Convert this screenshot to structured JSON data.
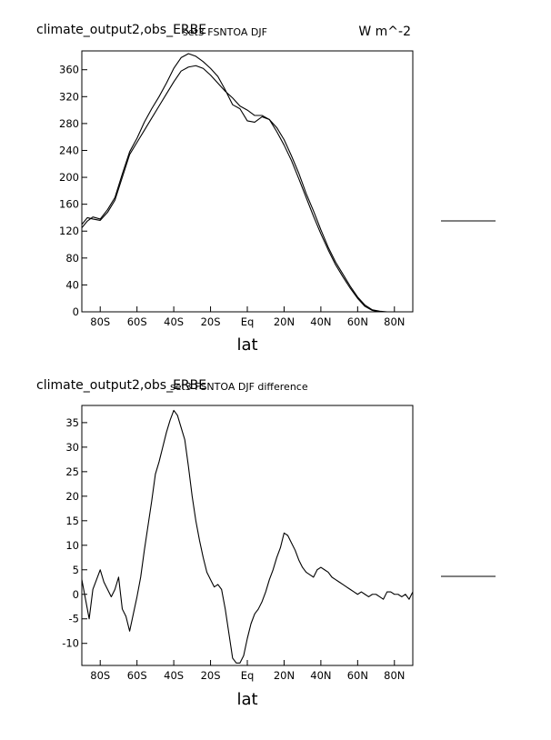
{
  "chart_data": [
    {
      "type": "line",
      "title": "climate_output2,obs_ERBE",
      "subtitle": "set3 FSNTOA DJF",
      "units": "W m^-2",
      "xlabel": "lat",
      "ylabel": "",
      "xlim": [
        -90,
        90
      ],
      "ylim": [
        0,
        388
      ],
      "xticks": [
        -80,
        -60,
        -40,
        -20,
        0,
        20,
        40,
        60,
        80
      ],
      "xtick_labels": [
        "80S",
        "60S",
        "40S",
        "20S",
        "Eq",
        "20N",
        "40N",
        "60N",
        "80N"
      ],
      "yticks": [
        0,
        40,
        80,
        120,
        160,
        200,
        240,
        280,
        320,
        360
      ],
      "ytick_labels": [
        "0",
        "40",
        "80",
        "120",
        "160",
        "200",
        "240",
        "280",
        "320",
        "360"
      ],
      "grid": false,
      "series": [
        {
          "x": [
            -90,
            -87,
            -84,
            -80,
            -76,
            -72,
            -68,
            -64,
            -60,
            -56,
            -52,
            -48,
            -44,
            -40,
            -36,
            -32,
            -28,
            -24,
            -20,
            -16,
            -12,
            -8,
            -4,
            0,
            4,
            8,
            12,
            16,
            20,
            24,
            28,
            32,
            36,
            40,
            44,
            48,
            52,
            56,
            60,
            64,
            68,
            72,
            76,
            80,
            84,
            88,
            90
          ],
          "y": [
            125,
            135,
            141,
            138,
            152,
            170,
            205,
            238,
            258,
            282,
            302,
            320,
            340,
            362,
            378,
            384,
            380,
            372,
            362,
            350,
            330,
            308,
            302,
            284,
            282,
            290,
            286,
            268,
            248,
            225,
            198,
            170,
            142,
            116,
            92,
            70,
            52,
            35,
            20,
            8,
            2,
            0,
            0,
            0,
            0,
            0,
            0
          ]
        },
        {
          "x": [
            -90,
            -87,
            -84,
            -80,
            -76,
            -72,
            -68,
            -64,
            -60,
            -56,
            -52,
            -48,
            -44,
            -40,
            -36,
            -32,
            -28,
            -24,
            -20,
            -16,
            -12,
            -8,
            -4,
            0,
            4,
            8,
            12,
            16,
            20,
            24,
            28,
            32,
            36,
            40,
            44,
            48,
            52,
            56,
            60,
            64,
            68,
            72,
            76,
            80,
            84,
            88,
            90
          ],
          "y": [
            130,
            140,
            138,
            136,
            148,
            166,
            200,
            234,
            252,
            270,
            288,
            306,
            324,
            342,
            358,
            364,
            366,
            362,
            352,
            340,
            328,
            318,
            306,
            300,
            292,
            292,
            286,
            274,
            256,
            232,
            206,
            176,
            150,
            122,
            96,
            74,
            56,
            38,
            22,
            10,
            3,
            1,
            0,
            0,
            0,
            0,
            0
          ]
        }
      ]
    },
    {
      "type": "line",
      "title": "climate_output2,obs_ERBE",
      "subtitle": "set3 FSNTOA DJF difference",
      "xlabel": "lat",
      "ylabel": "",
      "xlim": [
        -90,
        90
      ],
      "ylim": [
        -14.5,
        38.5
      ],
      "xticks": [
        -80,
        -60,
        -40,
        -20,
        0,
        20,
        40,
        60,
        80
      ],
      "xtick_labels": [
        "80S",
        "60S",
        "40S",
        "20S",
        "Eq",
        "20N",
        "40N",
        "60N",
        "80N"
      ],
      "yticks": [
        -10,
        -5,
        0,
        5,
        10,
        15,
        20,
        25,
        30,
        35
      ],
      "ytick_labels": [
        "-10",
        "-5",
        "0",
        "5",
        "10",
        "15",
        "20",
        "25",
        "30",
        "35"
      ],
      "grid": false,
      "series": [
        {
          "x": [
            -90,
            -88,
            -86,
            -84,
            -82,
            -80,
            -78,
            -76,
            -74,
            -72,
            -70,
            -68,
            -66,
            -64,
            -62,
            -60,
            -58,
            -56,
            -54,
            -52,
            -50,
            -48,
            -46,
            -44,
            -42,
            -40,
            -38,
            -36,
            -34,
            -32,
            -30,
            -28,
            -26,
            -24,
            -22,
            -20,
            -18,
            -16,
            -14,
            -12,
            -10,
            -8,
            -6,
            -4,
            -2,
            0,
            2,
            4,
            6,
            8,
            10,
            12,
            14,
            16,
            18,
            20,
            22,
            24,
            26,
            28,
            30,
            32,
            34,
            36,
            38,
            40,
            42,
            44,
            46,
            48,
            50,
            52,
            54,
            56,
            58,
            60,
            62,
            64,
            66,
            68,
            70,
            72,
            74,
            76,
            78,
            80,
            82,
            84,
            86,
            88,
            90
          ],
          "y": [
            3,
            -1,
            -5,
            1,
            3,
            5,
            2.5,
            1,
            -0.5,
            1,
            3.5,
            -3,
            -4.5,
            -7.5,
            -4,
            -0.5,
            3.5,
            9,
            14,
            19,
            24.5,
            27,
            30,
            33,
            35.5,
            37.5,
            36.5,
            34,
            31.5,
            26,
            20,
            15,
            11,
            7.5,
            4.5,
            3,
            1.5,
            2,
            1,
            -3,
            -8,
            -13,
            -14,
            -14,
            -12.5,
            -9,
            -6,
            -4,
            -3,
            -1.5,
            0.5,
            3,
            5,
            7.5,
            9.5,
            12.5,
            12,
            10.5,
            9,
            7,
            5.5,
            4.5,
            4,
            3.5,
            5,
            5.5,
            5,
            4.5,
            3.5,
            3,
            2.5,
            2,
            1.5,
            1,
            0.5,
            0,
            0.5,
            0,
            -0.5,
            0,
            0,
            -0.5,
            -1,
            0.5,
            0.5,
            0,
            0,
            -0.5,
            0,
            -1,
            0.5
          ]
        }
      ]
    }
  ]
}
